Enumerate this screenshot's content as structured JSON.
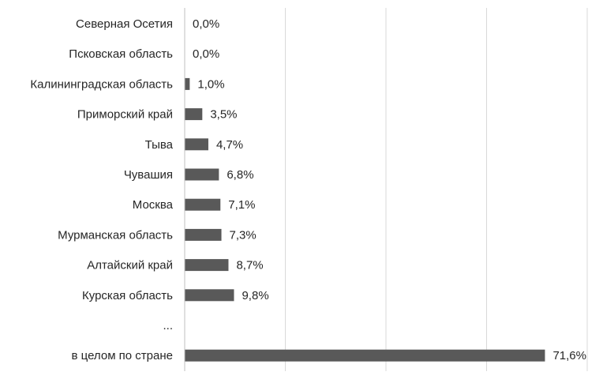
{
  "chart_data": {
    "type": "bar",
    "orientation": "horizontal",
    "title": "",
    "xlabel": "",
    "ylabel": "",
    "xlim": [
      0,
      80
    ],
    "grid": true,
    "legend": "none",
    "bar_color": "#595959",
    "categories": [
      "Северная Осетия",
      "Псковская область",
      "Калининградская область",
      "Приморский край",
      "Тыва",
      "Чувашия",
      "Москва",
      "Мурманская область",
      "Алтайский край",
      "Курская область",
      "...",
      "в целом по стране"
    ],
    "values": [
      0.0,
      0.0,
      1.0,
      3.5,
      4.7,
      6.8,
      7.1,
      7.3,
      8.7,
      9.8,
      null,
      71.6
    ],
    "value_labels": [
      "0,0%",
      "0,0%",
      "1,0%",
      "3,5%",
      "4,7%",
      "6,8%",
      "7,1%",
      "7,3%",
      "8,7%",
      "9,8%",
      "",
      "71,6%"
    ]
  }
}
